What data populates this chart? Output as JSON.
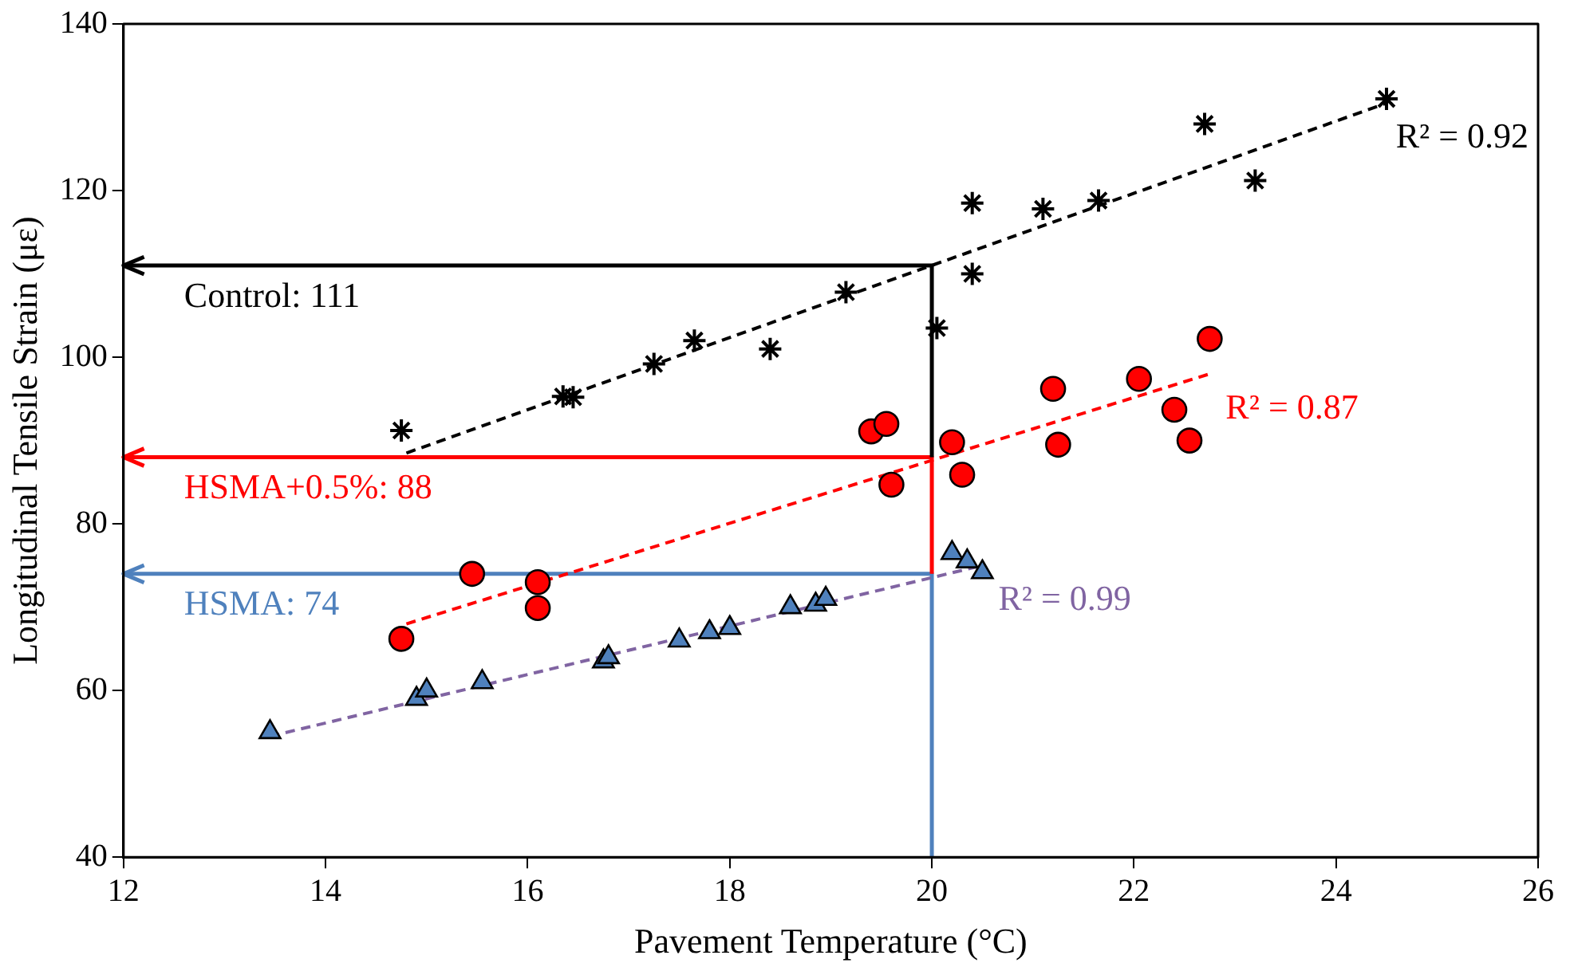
{
  "chart_data": {
    "type": "scatter",
    "xlabel": "Pavement Temperature (°C)",
    "ylabel": "Longitudinal Tensile Strain (με)",
    "xlim": [
      12,
      26
    ],
    "xticks": [
      12,
      14,
      16,
      18,
      20,
      22,
      24,
      26
    ],
    "ylim": [
      40,
      140
    ],
    "yticks": [
      40,
      60,
      80,
      100,
      120,
      140
    ],
    "grid": false,
    "legend": false,
    "series": [
      {
        "type": "line",
        "name": "R² = 0.92",
        "color": "#000000",
        "line_style": "dashed",
        "marker": "none",
        "x": [
          14.8,
          24.5
        ],
        "values": [
          88.5,
          130.5
        ]
      },
      {
        "type": "line",
        "name": "R² = 0.87",
        "color": "#ff0000",
        "line_style": "dashed",
        "marker": "none",
        "x": [
          14.8,
          22.75
        ],
        "values": [
          68,
          98
        ]
      },
      {
        "type": "line",
        "name": "R² = 0.99",
        "color": "#8064a2",
        "line_style": "dashed",
        "marker": "none",
        "x": [
          13.45,
          20.5
        ],
        "values": [
          54.5,
          75
        ]
      },
      {
        "type": "line",
        "name": "Control: 111",
        "color": "#000000",
        "line_style": "solid",
        "marker": "none",
        "x": [
          20,
          20,
          12
        ],
        "values": [
          88,
          111,
          111
        ]
      },
      {
        "type": "line",
        "name": "HSMA+0.5%: 88",
        "color": "#ff0000",
        "line_style": "solid",
        "marker": "none",
        "x": [
          20,
          20,
          12
        ],
        "values": [
          74,
          88,
          88
        ]
      },
      {
        "type": "line",
        "name": "HSMA: 74",
        "color": "#4f81bd",
        "line_style": "solid",
        "marker": "none",
        "x": [
          20,
          20,
          12
        ],
        "values": [
          40,
          74,
          74
        ]
      },
      {
        "color": "#000000",
        "marker": "cross",
        "x": [
          14.75,
          16.35,
          16.45,
          17.25,
          17.65,
          18.4,
          19.15,
          20.05,
          20.4,
          20.4,
          21.1,
          21.65,
          22.7,
          23.2,
          24.5
        ],
        "values": [
          91.2,
          95.3,
          95.2,
          99.2,
          102,
          101,
          107.8,
          103.5,
          110,
          118.5,
          117.8,
          118.8,
          128,
          121.2,
          131
        ]
      },
      {
        "color": "#ff0000",
        "marker": "circle",
        "x": [
          14.75,
          15.45,
          16.1,
          16.1,
          19.4,
          19.55,
          19.6,
          20.2,
          20.3,
          21.2,
          21.25,
          22.05,
          22.4,
          22.55,
          22.75
        ],
        "values": [
          66.2,
          74,
          73,
          69.9,
          91.1,
          92,
          84.7,
          89.8,
          85.9,
          96.2,
          89.5,
          97.4,
          93.7,
          90,
          102.2
        ]
      },
      {
        "color": "#4f81bd",
        "marker": "triangle",
        "x": [
          13.45,
          14.9,
          15,
          15.55,
          16.75,
          16.8,
          17.5,
          17.8,
          18,
          18.6,
          18.85,
          18.95,
          20.2,
          20.35,
          20.5
        ],
        "values": [
          55,
          59,
          60,
          61,
          63.5,
          64,
          66,
          67,
          67.5,
          70,
          70.3,
          71,
          76.5,
          75.5,
          74.2
        ]
      }
    ]
  }
}
